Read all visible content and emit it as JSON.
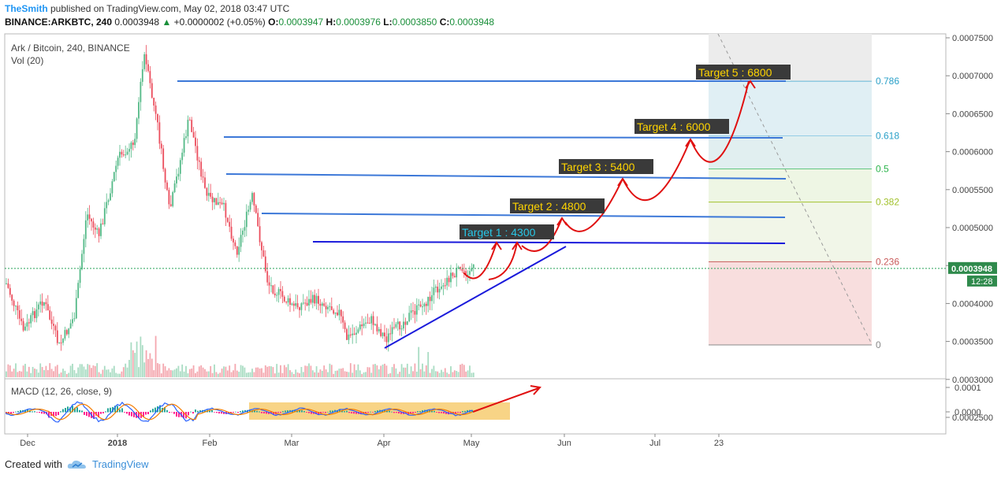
{
  "header": {
    "user": "TheSmith",
    "published": " published on TradingView.com, May 02, 2018 03:47 UTC",
    "symbol": "BINANCE:ARKBTC, 240",
    "last": "0.0003948",
    "change_arrow": "▲",
    "change": "+0.0000002 (+0.05%)",
    "o_label": "O:",
    "o": "0.0003947",
    "h_label": "H:",
    "h": "0.0003976",
    "l_label": "L:",
    "l": "0.0003850",
    "c_label": "C:",
    "c": "0.0003948"
  },
  "legend": {
    "title": "Ark / Bitcoin, 240, BINANCE",
    "vol": "Vol (20)"
  },
  "macd_legend": "MACD (12, 26, close, 9)",
  "footer": {
    "created_with": "Created with",
    "brand": "TradingView"
  },
  "colors": {
    "up": "#53b987",
    "down": "#eb4d5c",
    "blue_line": "#3c78d8",
    "dark_blue": "#1a1adb",
    "red_arrow": "#e01010",
    "target_bg": "#3a3a3a",
    "target_text": "#ffd400",
    "target1_text": "#28c8e8",
    "macd_highlight": "#f6c55e"
  },
  "chart_data": [
    {
      "type": "line",
      "title": "Ark / Bitcoin, 240, BINANCE",
      "price_axis": {
        "ticks": [
          "0.0007500",
          "0.0007000",
          "0.0006500",
          "0.0006000",
          "0.0005500",
          "0.0005000",
          "0.0004500",
          "0.0004000",
          "0.0003500",
          "0.0003000",
          "0.0002500"
        ],
        "current_price": "0.0003948",
        "countdown": "12:28"
      },
      "time_axis": [
        "Dec",
        "2018",
        "Feb",
        "Mar",
        "Apr",
        "May",
        "Jun",
        "Jul",
        "23"
      ],
      "price_series": [
        [
          "Dec",
          0.000385
        ],
        [
          "2018",
          0.000415
        ],
        [
          "2018",
          0.000565
        ],
        [
          "2018",
          0.000695
        ],
        [
          "Feb",
          0.000625
        ],
        [
          "Feb",
          0.000505
        ],
        [
          "Mar",
          0.000385
        ],
        [
          "Mar",
          0.00037
        ],
        [
          "Apr",
          0.00029
        ],
        [
          "Apr",
          0.000305
        ],
        [
          "Apr",
          0.000345
        ],
        [
          "May",
          0.000395
        ],
        [
          "May",
          0.0003948
        ]
      ],
      "fibonacci": [
        {
          "label": "0.786",
          "price": 0.000683
        },
        {
          "label": "0.618",
          "price": 0.000599
        },
        {
          "label": "0.5",
          "price": 0.000548
        },
        {
          "label": "0.382",
          "price": 0.000497
        },
        {
          "label": "0.236",
          "price": 0.000405
        },
        {
          "label": "0",
          "price": 0.000277
        }
      ],
      "targets": [
        {
          "label": "Target 1 : 4300",
          "price": 0.00043
        },
        {
          "label": "Target 2 : 4800",
          "price": 0.000475
        },
        {
          "label": "Target 3 : 5400",
          "price": 0.000538
        },
        {
          "label": "Target 4 : 6000",
          "price": 0.000594
        },
        {
          "label": "Target 5 : 6800",
          "price": 0.000683
        }
      ],
      "ylim": [
        0.000225,
        0.000755
      ]
    },
    {
      "type": "line",
      "title": "MACD (12, 26, close, 9)",
      "price_axis": {
        "ticks": [
          "0.0001",
          "0.0000"
        ]
      }
    }
  ]
}
